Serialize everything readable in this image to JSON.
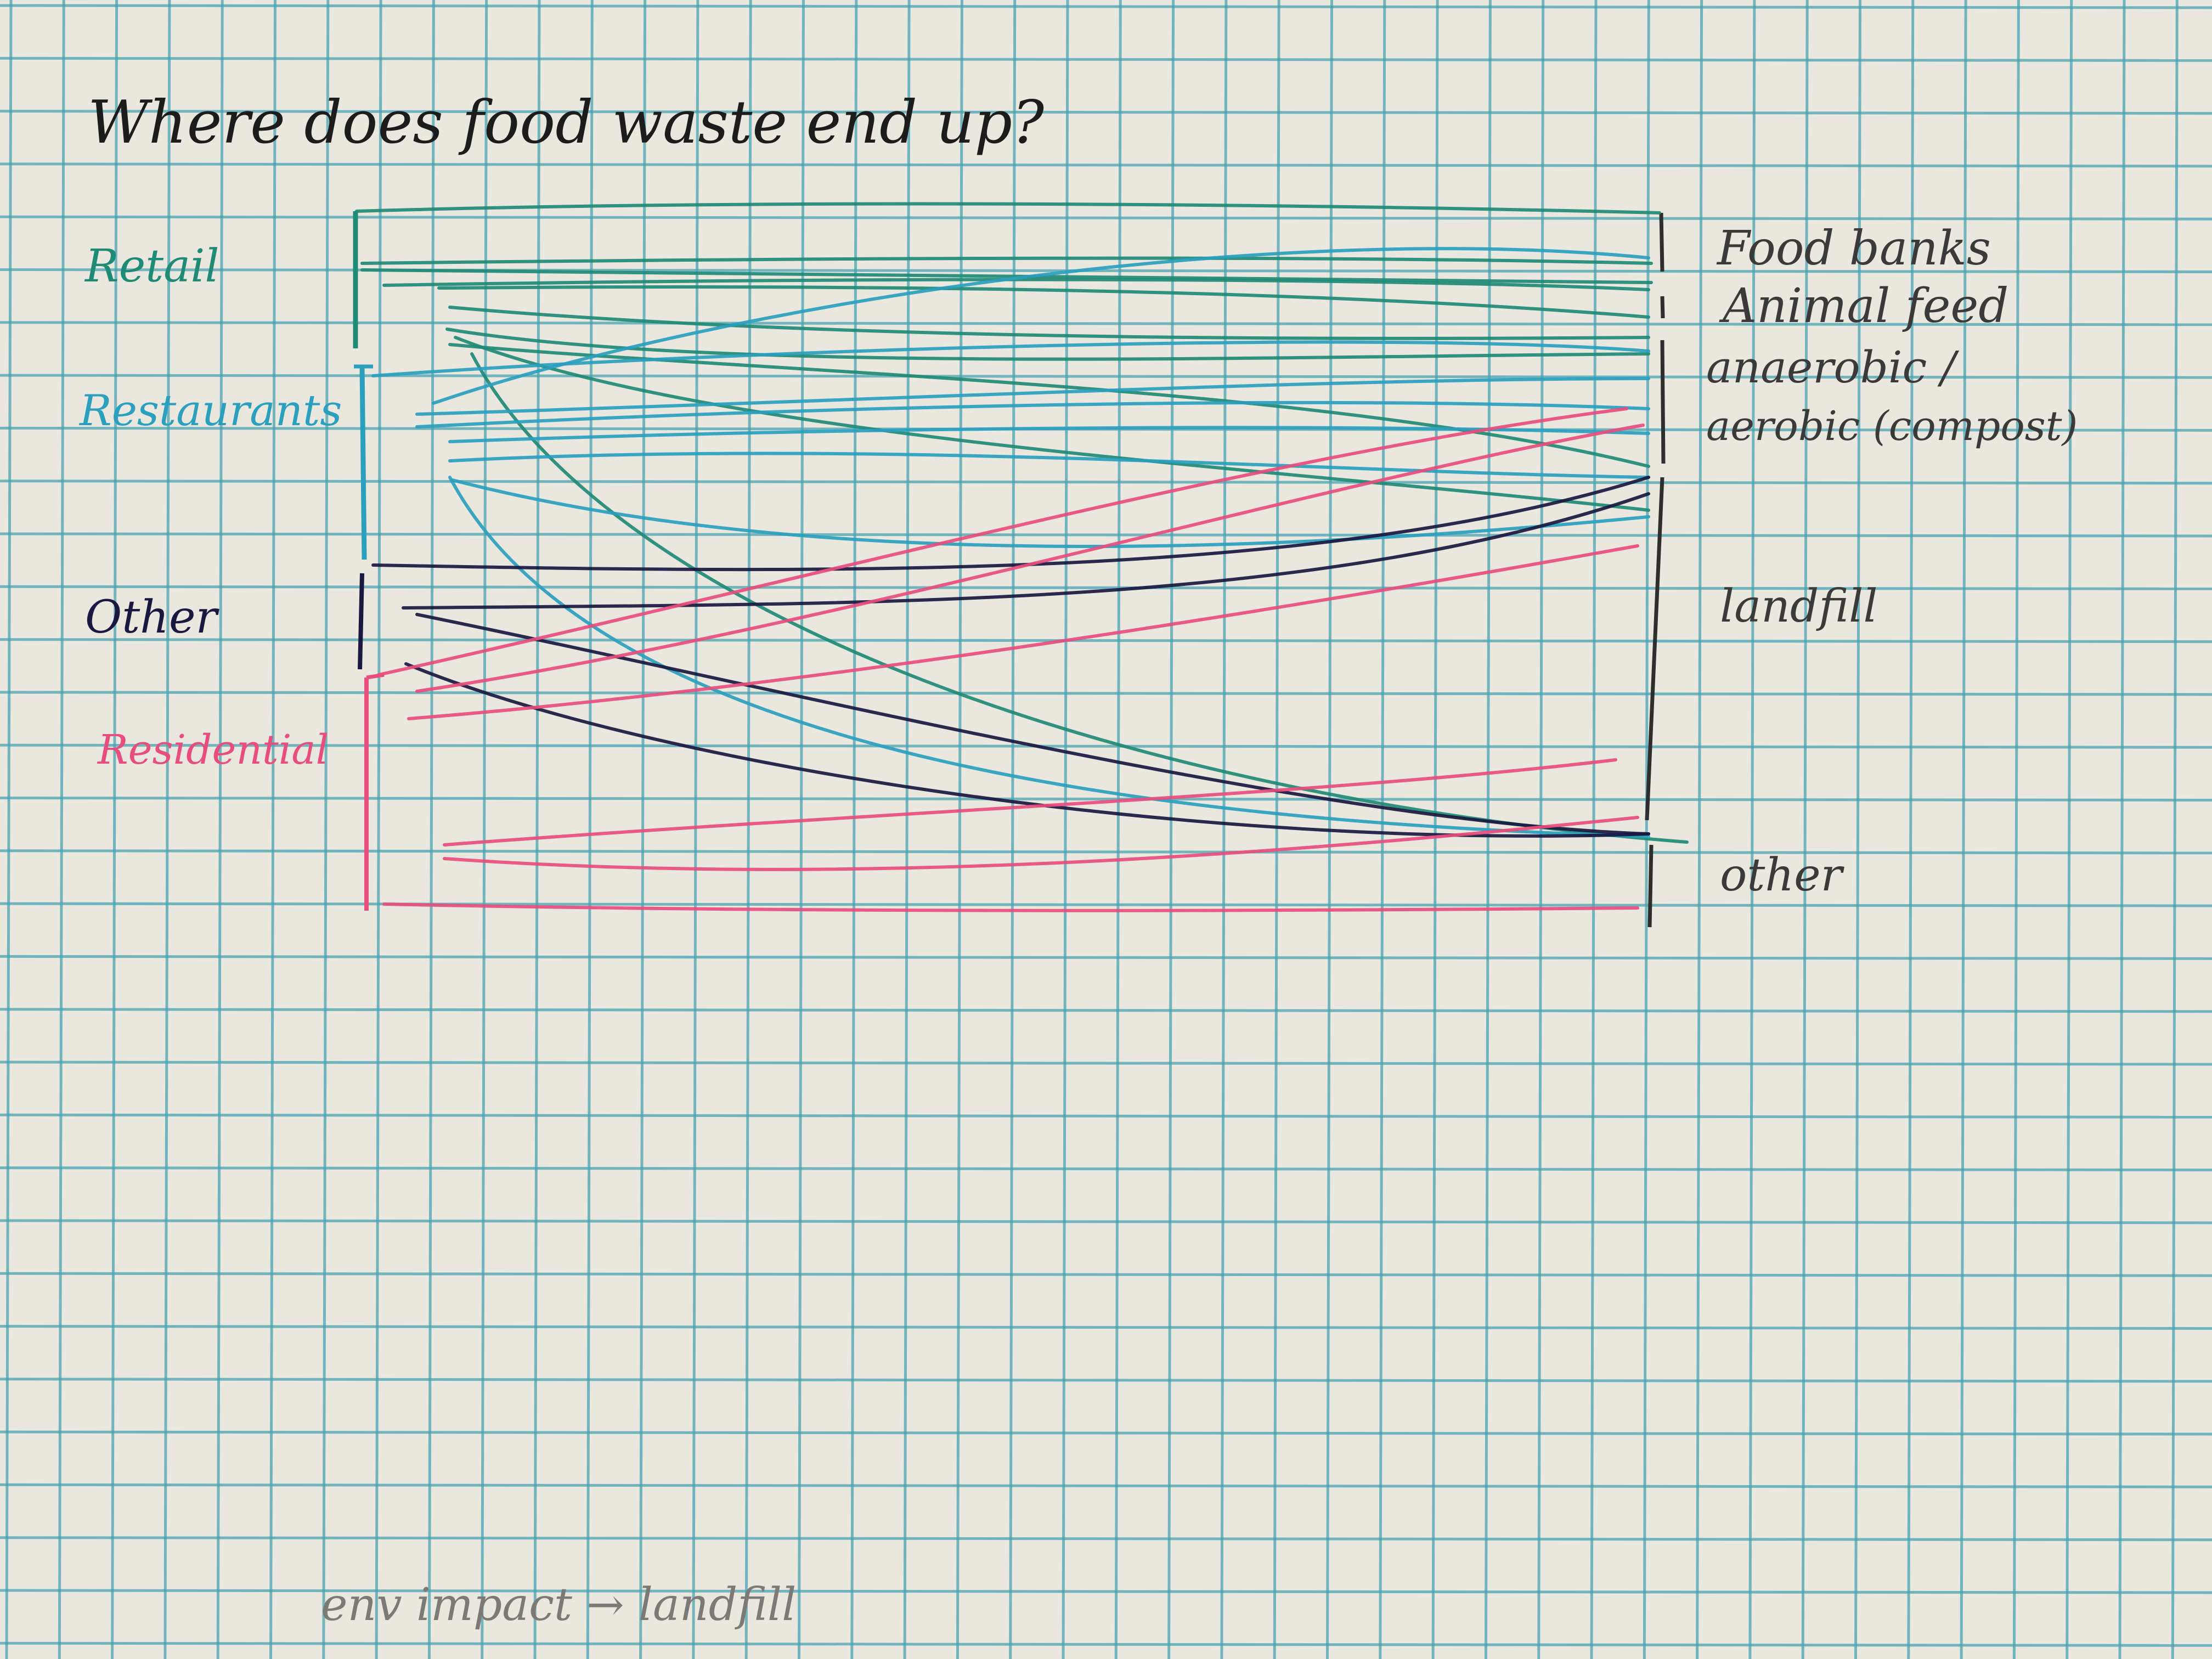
{
  "title": "Where does food waste end up?",
  "sources": [
    {
      "id": "retail",
      "label": "Retail",
      "color": "#1f8a75"
    },
    {
      "id": "restaurants",
      "label": "Restaurants",
      "color": "#2a9fbe"
    },
    {
      "id": "other",
      "label": "Other",
      "color": "#1a1840"
    },
    {
      "id": "residential",
      "label": "Residential",
      "color": "#e84d7d"
    }
  ],
  "destinations": [
    {
      "id": "food_banks",
      "label": "Food banks"
    },
    {
      "id": "animal_feed",
      "label": "Animal feed"
    },
    {
      "id": "anaerobic",
      "label": "anaerobic /"
    },
    {
      "id": "aerobic",
      "label": "aerobic (compost)"
    },
    {
      "id": "landfill",
      "label": "landfill"
    },
    {
      "id": "other",
      "label": "other"
    }
  ],
  "footnote": "env impact → landfill",
  "colors": {
    "paper": "#e9e7de",
    "grid": "#4aa3b3",
    "ink": "#2e2e2e"
  }
}
